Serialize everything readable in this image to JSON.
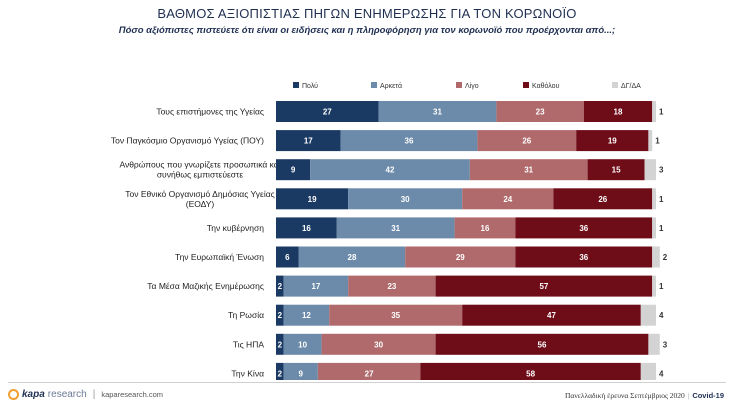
{
  "header": {
    "title": "ΒΑΘΜΟΣ ΑΞΙΟΠΙΣΤΙΑΣ ΠΗΓΩΝ ΕΝΗΜΕΡΩΣΗΣ ΓΙΑ ΤΟΝ ΚΟΡΩΝΟΪΟ",
    "subtitle": "Πόσο αξιόπιστες πιστεύετε ότι είναι οι ειδήσεις και η πληροφόρηση για τον κορωνοϊό που προέρχονται από...;"
  },
  "chart_data": {
    "type": "bar",
    "orientation": "horizontal",
    "stacked": true,
    "stack_total": 100,
    "title": "ΒΑΘΜΟΣ ΑΞΙΟΠΙΣΤΙΑΣ ΠΗΓΩΝ ΕΝΗΜΕΡΩΣΗΣ ΓΙΑ ΤΟΝ ΚΟΡΩΝΟΪΟ",
    "legend_position": "top",
    "categories": [
      "Τους επιστήμονες της Υγείας",
      "Τον Παγκόσμιο Οργανισμό Υγείας (ΠΟΥ)",
      "Ανθρώπους που γνωρίζετε προσωπικά και συνήθως εμπιστεύεστε",
      "Τον Εθνικό Οργανισμό Δημόσιας Υγείας (ΕΟΔΥ)",
      "Την κυβέρνηση",
      "Την Ευρωπαϊκή Ένωση",
      "Τα Μέσα Μαζικής Ενημέρωσης",
      "Τη Ρωσία",
      "Τις ΗΠΑ",
      "Την Κίνα"
    ],
    "series": [
      {
        "name": "Πολύ",
        "color": "#1b3a63",
        "values": [
          27,
          17,
          9,
          19,
          16,
          6,
          2,
          2,
          2,
          2
        ]
      },
      {
        "name": "Αρκετά",
        "color": "#6c8aaa",
        "values": [
          31,
          36,
          42,
          30,
          31,
          28,
          17,
          12,
          10,
          9
        ]
      },
      {
        "name": "Λίγο",
        "color": "#b06a6c",
        "values": [
          23,
          26,
          31,
          24,
          16,
          29,
          23,
          35,
          30,
          27
        ]
      },
      {
        "name": "Καθόλου",
        "color": "#6e0c18",
        "values": [
          18,
          19,
          15,
          26,
          36,
          36,
          57,
          47,
          56,
          58
        ]
      },
      {
        "name": "ΔΓ/ΔΑ",
        "color": "#d3d3d3",
        "values": [
          1,
          1,
          3,
          1,
          1,
          2,
          1,
          4,
          3,
          4
        ]
      }
    ]
  },
  "footer": {
    "logo_main": "kapa",
    "logo_sub": "research",
    "website": "kaparesearch.com",
    "survey": "Πανελλαδική έρευνα Σεπτέμβριος 2020",
    "tag": "Covid-19"
  }
}
